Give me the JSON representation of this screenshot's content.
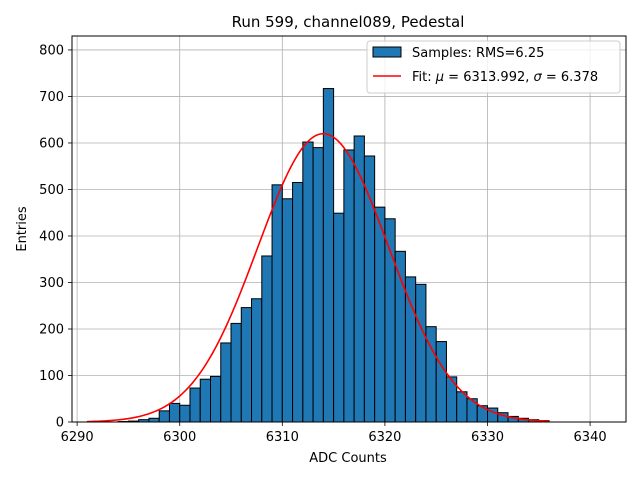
{
  "chart_data": {
    "type": "bar",
    "title": "Run 599, channel089, Pedestal",
    "xlabel": "ADC Counts",
    "ylabel": "Entries",
    "xlim": [
      6289.5,
      6343.5
    ],
    "ylim": [
      0,
      830
    ],
    "xticks": [
      6290,
      6300,
      6310,
      6320,
      6330,
      6340
    ],
    "yticks": [
      0,
      100,
      200,
      300,
      400,
      500,
      600,
      700,
      800
    ],
    "grid": true,
    "legend_position": "top-right",
    "bin_edges_start": 6291,
    "bin_width": 1,
    "counts": [
      1,
      0,
      0,
      1,
      2,
      5,
      8,
      24,
      40,
      36,
      73,
      92,
      98,
      170,
      212,
      246,
      265,
      357,
      510,
      480,
      515,
      602,
      590,
      717,
      449,
      585,
      615,
      572,
      462,
      437,
      367,
      312,
      296,
      205,
      173,
      97,
      65,
      50,
      35,
      30,
      20,
      12,
      8,
      5,
      3
    ],
    "series": [
      {
        "name": "Samples: RMS=6.25",
        "kind": "histogram",
        "color": "#1f77b4",
        "edgecolor": "#000000"
      },
      {
        "name": "Fit: μ = 6313.992, σ = 6.378",
        "kind": "gaussian",
        "color": "#ff0000",
        "mu": 6313.992,
        "sigma": 6.378,
        "amplitude": 620,
        "x_range": [
          6291,
          6336
        ]
      }
    ],
    "legend_entries": [
      {
        "parts": [
          {
            "t": "Samples: RMS=6.25"
          }
        ]
      },
      {
        "parts": [
          {
            "t": "Fit: "
          },
          {
            "t": "μ",
            "italic": true
          },
          {
            "t": " = 6313.992, "
          },
          {
            "t": "σ",
            "italic": true
          },
          {
            "t": " = 6.378"
          }
        ]
      }
    ]
  }
}
